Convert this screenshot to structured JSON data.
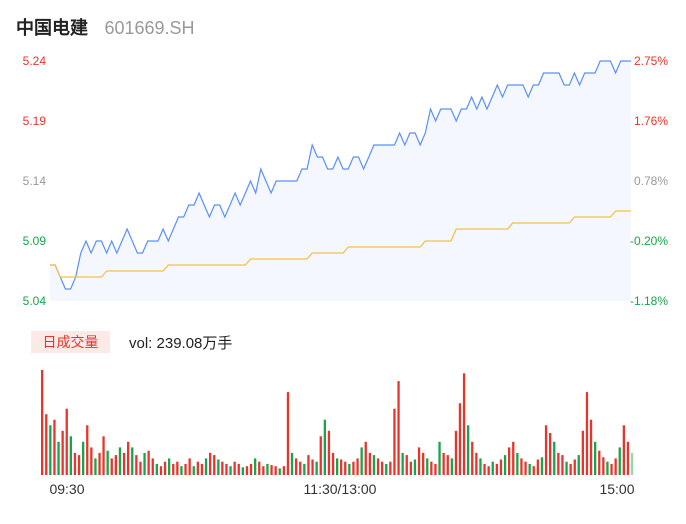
{
  "header": {
    "stock_name": "中国电建",
    "stock_code": "601669.SH"
  },
  "volume_panel": {
    "badge_label": "日成交量",
    "vol_label": "vol: 239.08万手"
  },
  "colors": {
    "price_line": "#5b8ff9",
    "avg_line": "#f5c04a",
    "price_fill": "#f4f7fd",
    "up": "#e8352b",
    "down": "#1aa34a",
    "flat_label": "#999999"
  },
  "chart_data": [
    {
      "type": "line",
      "name": "intraday-price",
      "y_ticks_left": [
        "5.24",
        "5.19",
        "5.14",
        "5.09",
        "5.04"
      ],
      "y_ticks_right": [
        "2.75%",
        "1.76%",
        "0.78%",
        "-0.20%",
        "-1.18%"
      ],
      "ylim": [
        5.04,
        5.24
      ],
      "x_ticks": [
        "09:30",
        "11:30/13:00",
        "15:00"
      ],
      "series": [
        {
          "values": [
            5.07,
            5.07,
            5.06,
            5.05,
            5.05,
            5.06,
            5.08,
            5.09,
            5.08,
            5.09,
            5.09,
            5.08,
            5.09,
            5.08,
            5.09,
            5.1,
            5.09,
            5.08,
            5.08,
            5.09,
            5.09,
            5.09,
            5.1,
            5.09,
            5.1,
            5.11,
            5.11,
            5.12,
            5.12,
            5.13,
            5.12,
            5.11,
            5.12,
            5.12,
            5.11,
            5.12,
            5.13,
            5.12,
            5.13,
            5.14,
            5.13,
            5.15,
            5.14,
            5.13,
            5.14,
            5.14,
            5.14,
            5.14,
            5.14,
            5.15,
            5.15,
            5.17,
            5.16,
            5.16,
            5.15,
            5.15,
            5.16,
            5.15,
            5.15,
            5.16,
            5.16,
            5.15,
            5.16,
            5.17,
            5.17,
            5.17,
            5.17,
            5.17,
            5.18,
            5.17,
            5.18,
            5.18,
            5.17,
            5.18,
            5.2,
            5.19,
            5.2,
            5.2,
            5.2,
            5.19,
            5.2,
            5.2,
            5.21,
            5.2,
            5.21,
            5.2,
            5.21,
            5.22,
            5.21,
            5.22,
            5.22,
            5.22,
            5.22,
            5.21,
            5.22,
            5.22,
            5.23,
            5.23,
            5.23,
            5.23,
            5.22,
            5.22,
            5.23,
            5.22,
            5.23,
            5.23,
            5.23,
            5.24,
            5.24,
            5.24,
            5.23,
            5.24,
            5.24,
            5.24
          ]
        },
        {
          "values": [
            5.07,
            5.07,
            5.06,
            5.06,
            5.06,
            5.06,
            5.06,
            5.06,
            5.06,
            5.06,
            5.06,
            5.065,
            5.065,
            5.065,
            5.065,
            5.065,
            5.065,
            5.065,
            5.065,
            5.065,
            5.065,
            5.065,
            5.065,
            5.07,
            5.07,
            5.07,
            5.07,
            5.07,
            5.07,
            5.07,
            5.07,
            5.07,
            5.07,
            5.07,
            5.07,
            5.07,
            5.07,
            5.07,
            5.07,
            5.075,
            5.075,
            5.075,
            5.075,
            5.075,
            5.075,
            5.075,
            5.075,
            5.075,
            5.075,
            5.075,
            5.075,
            5.08,
            5.08,
            5.08,
            5.08,
            5.08,
            5.08,
            5.08,
            5.085,
            5.085,
            5.085,
            5.085,
            5.085,
            5.085,
            5.085,
            5.085,
            5.085,
            5.085,
            5.085,
            5.085,
            5.085,
            5.085,
            5.085,
            5.09,
            5.09,
            5.09,
            5.09,
            5.09,
            5.09,
            5.1,
            5.1,
            5.1,
            5.1,
            5.1,
            5.1,
            5.1,
            5.1,
            5.1,
            5.1,
            5.1,
            5.105,
            5.105,
            5.105,
            5.105,
            5.105,
            5.105,
            5.105,
            5.105,
            5.105,
            5.105,
            5.105,
            5.105,
            5.11,
            5.11,
            5.11,
            5.11,
            5.11,
            5.11,
            5.11,
            5.11,
            5.115,
            5.115,
            5.115,
            5.115
          ]
        }
      ]
    },
    {
      "type": "bar",
      "name": "volume",
      "values": [
        95,
        55,
        45,
        50,
        30,
        40,
        60,
        35,
        20,
        18,
        30,
        45,
        25,
        15,
        20,
        35,
        22,
        15,
        18,
        25,
        20,
        30,
        25,
        18,
        12,
        20,
        22,
        15,
        10,
        8,
        12,
        15,
        10,
        12,
        8,
        10,
        15,
        8,
        12,
        10,
        15,
        20,
        18,
        14,
        12,
        10,
        8,
        12,
        10,
        7,
        8,
        10,
        15,
        12,
        8,
        10,
        9,
        8,
        6,
        8,
        75,
        20,
        15,
        12,
        10,
        18,
        14,
        12,
        35,
        50,
        40,
        20,
        15,
        14,
        12,
        10,
        12,
        15,
        25,
        30,
        20,
        18,
        15,
        12,
        10,
        12,
        60,
        85,
        20,
        18,
        12,
        14,
        25,
        20,
        15,
        12,
        10,
        30,
        20,
        18,
        15,
        40,
        65,
        92,
        45,
        30,
        20,
        15,
        10,
        8,
        12,
        10,
        14,
        18,
        25,
        30,
        20,
        15,
        12,
        10,
        8,
        14,
        16,
        45,
        38,
        30,
        20,
        18,
        12,
        10,
        14,
        18,
        40,
        75,
        50,
        30,
        22,
        16,
        12,
        10,
        15,
        25,
        45,
        30,
        20
      ],
      "up": [
        true,
        true,
        false,
        true,
        false,
        true,
        true,
        false,
        true,
        true,
        false,
        true,
        true,
        false,
        true,
        true,
        false,
        true,
        true,
        false,
        true,
        true,
        false,
        true,
        true,
        false,
        true,
        true,
        false,
        true,
        true,
        false,
        true,
        true,
        false,
        true,
        true,
        false,
        true,
        true,
        false,
        true,
        true,
        false,
        true,
        true,
        false,
        true,
        true,
        false,
        true,
        true,
        false,
        true,
        true,
        false,
        true,
        true,
        false,
        true,
        true,
        false,
        true,
        true,
        false,
        true,
        true,
        false,
        true,
        false,
        true,
        true,
        false,
        true,
        true,
        false,
        true,
        true,
        false,
        true,
        true,
        false,
        true,
        true,
        false,
        true,
        true,
        true,
        false,
        true,
        true,
        false,
        true,
        true,
        false,
        true,
        true,
        false,
        true,
        true,
        false,
        true,
        true,
        true,
        false,
        true,
        true,
        false,
        true,
        true,
        false,
        true,
        true,
        false,
        true,
        true,
        false,
        true,
        true,
        false,
        true,
        true,
        false,
        true,
        true,
        false,
        true,
        true,
        false,
        true,
        true,
        false,
        true,
        true,
        true,
        false,
        true,
        true,
        false,
        true,
        true,
        false,
        true,
        true,
        false
      ]
    }
  ]
}
